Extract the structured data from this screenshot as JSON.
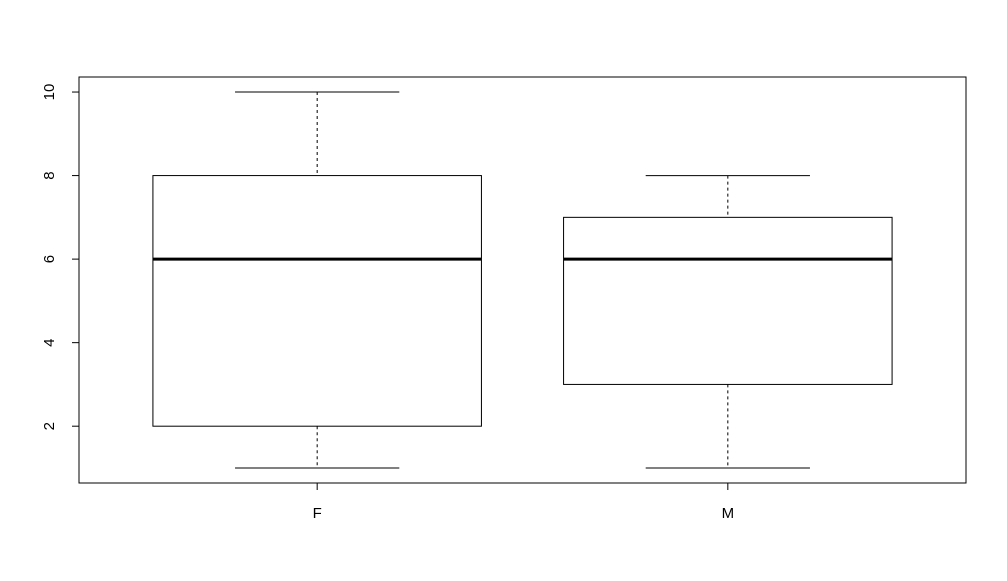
{
  "chart_data": {
    "type": "boxplot",
    "title": "",
    "xlabel": "",
    "ylabel": "",
    "categories": [
      "F",
      "M"
    ],
    "boxes": [
      {
        "category": "F",
        "min": 1,
        "q1": 2,
        "median": 6,
        "q3": 8,
        "max": 10
      },
      {
        "category": "M",
        "min": 1,
        "q1": 3,
        "median": 6,
        "q3": 7,
        "max": 8
      }
    ],
    "ylim": [
      0.64,
      10.36
    ],
    "yticks": [
      2,
      4,
      6,
      8,
      10
    ],
    "grid": false,
    "colors": {
      "box_fill": "#ffffff",
      "stroke": "#000000"
    }
  }
}
